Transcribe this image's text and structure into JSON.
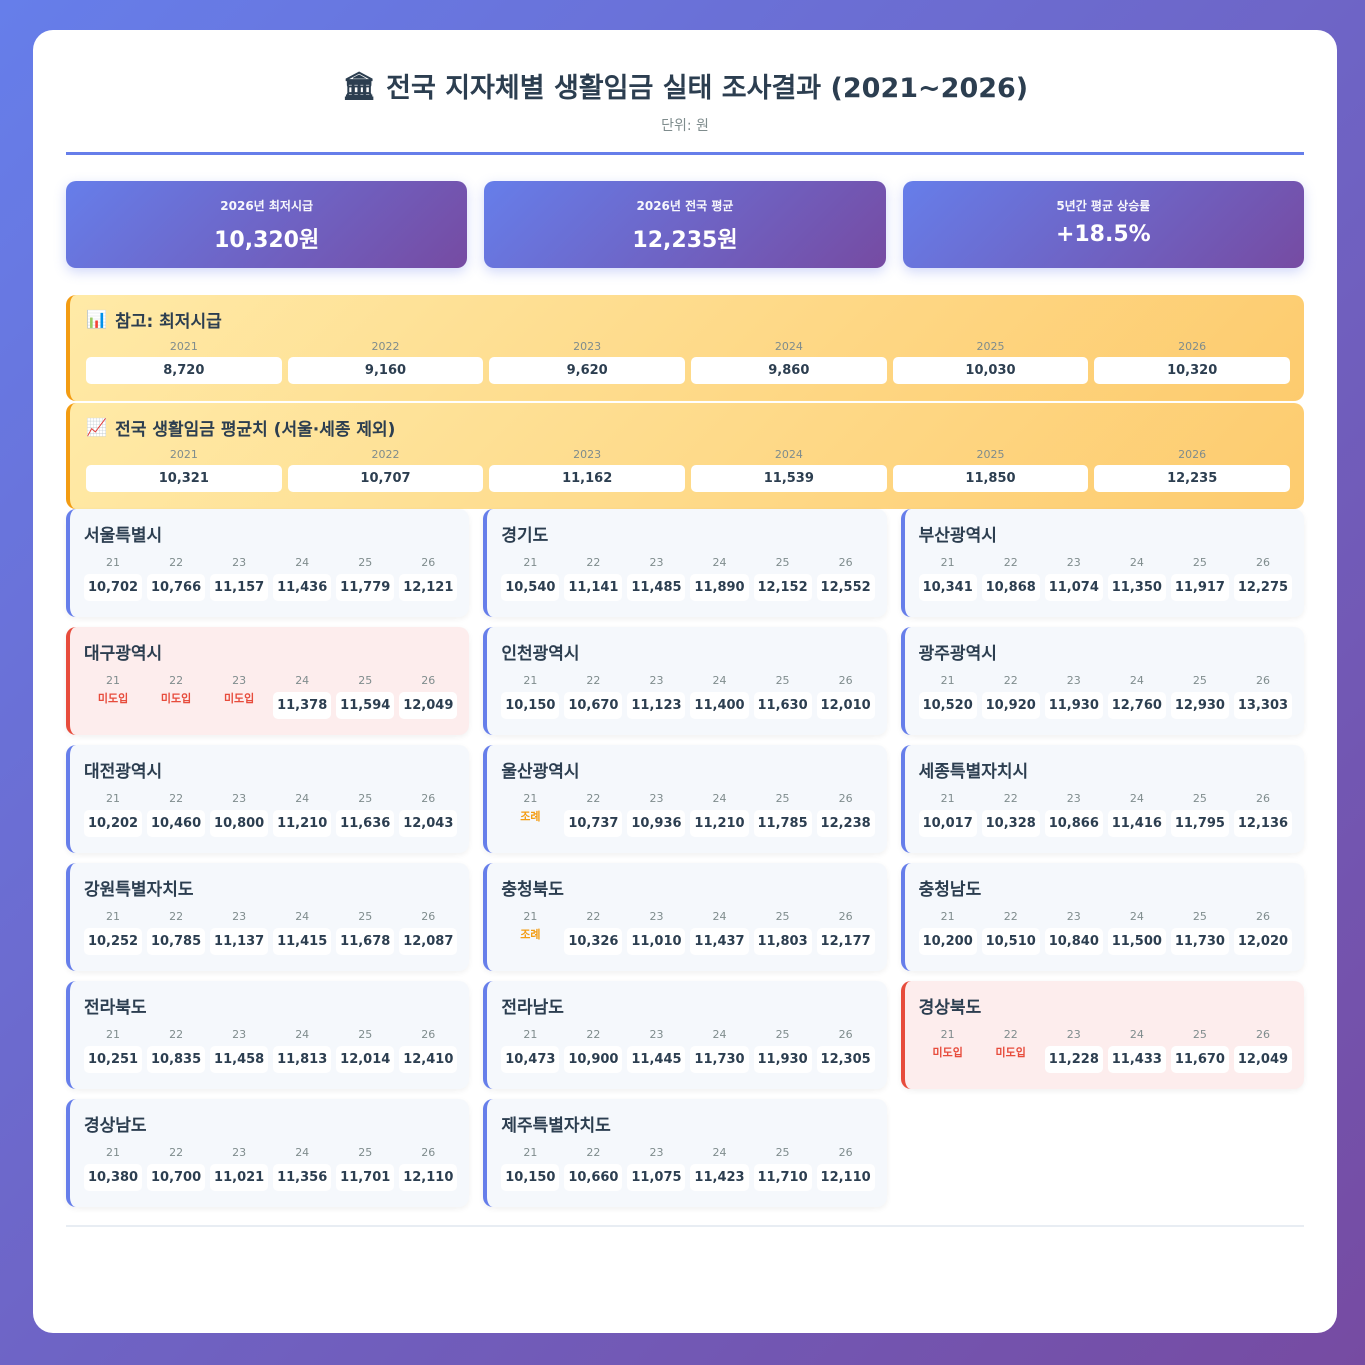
{
  "header": {
    "icon": "bank-icon",
    "title": "전국 지자체별 생활임금 실태 조사결과 (2021~2026)",
    "subtitle": "단위: 원"
  },
  "stats": [
    {
      "label": "2026년 최저시급",
      "value": "10,320원"
    },
    {
      "label": "2026년 전국 평균",
      "value": "12,235원"
    },
    {
      "label": "5년간 평균 상승률",
      "value": "+18.5%"
    }
  ],
  "reference": [
    {
      "icon": "bar-chart-icon",
      "title": "참고: 최저시급",
      "years": [
        "2021",
        "2022",
        "2023",
        "2024",
        "2025",
        "2026"
      ],
      "values": [
        "8,720",
        "9,160",
        "9,620",
        "9,860",
        "10,030",
        "10,320"
      ]
    },
    {
      "icon": "line-chart-icon",
      "title": "전국 생활임금 평균치 (서울·세종 제외)",
      "years": [
        "2021",
        "2022",
        "2023",
        "2024",
        "2025",
        "2026"
      ],
      "values": [
        "10,321",
        "10,707",
        "11,162",
        "11,539",
        "11,850",
        "12,235"
      ]
    }
  ],
  "region_years": [
    "21",
    "22",
    "23",
    "24",
    "25",
    "26"
  ],
  "colors": {
    "accent": "#667eea",
    "missing": "#e74c3c",
    "ordinance": "#f39c12"
  },
  "regions": [
    {
      "name": "서울특별시",
      "values": [
        "10,702",
        "10,766",
        "11,157",
        "11,436",
        "11,779",
        "12,121"
      ]
    },
    {
      "name": "경기도",
      "values": [
        "10,540",
        "11,141",
        "11,485",
        "11,890",
        "12,152",
        "12,552"
      ]
    },
    {
      "name": "부산광역시",
      "values": [
        "10,341",
        "10,868",
        "11,074",
        "11,350",
        "11,917",
        "12,275"
      ]
    },
    {
      "name": "대구광역시",
      "highlight": "red",
      "values": [
        "미도입",
        "미도입",
        "미도입",
        "11,378",
        "11,594",
        "12,049"
      ]
    },
    {
      "name": "인천광역시",
      "values": [
        "10,150",
        "10,670",
        "11,123",
        "11,400",
        "11,630",
        "12,010"
      ]
    },
    {
      "name": "광주광역시",
      "values": [
        "10,520",
        "10,920",
        "11,930",
        "12,760",
        "12,930",
        "13,303"
      ]
    },
    {
      "name": "대전광역시",
      "values": [
        "10,202",
        "10,460",
        "10,800",
        "11,210",
        "11,636",
        "12,043"
      ]
    },
    {
      "name": "울산광역시",
      "values": [
        "조례",
        "10,737",
        "10,936",
        "11,210",
        "11,785",
        "12,238"
      ]
    },
    {
      "name": "세종특별자치시",
      "values": [
        "10,017",
        "10,328",
        "10,866",
        "11,416",
        "11,795",
        "12,136"
      ]
    },
    {
      "name": "강원특별자치도",
      "values": [
        "10,252",
        "10,785",
        "11,137",
        "11,415",
        "11,678",
        "12,087"
      ]
    },
    {
      "name": "충청북도",
      "values": [
        "조례",
        "10,326",
        "11,010",
        "11,437",
        "11,803",
        "12,177"
      ]
    },
    {
      "name": "충청남도",
      "values": [
        "10,200",
        "10,510",
        "10,840",
        "11,500",
        "11,730",
        "12,020"
      ]
    },
    {
      "name": "전라북도",
      "values": [
        "10,251",
        "10,835",
        "11,458",
        "11,813",
        "12,014",
        "12,410"
      ]
    },
    {
      "name": "전라남도",
      "values": [
        "10,473",
        "10,900",
        "11,445",
        "11,730",
        "11,930",
        "12,305"
      ]
    },
    {
      "name": "경상북도",
      "highlight": "red",
      "values": [
        "미도입",
        "미도입",
        "11,228",
        "11,433",
        "11,670",
        "12,049"
      ]
    },
    {
      "name": "경상남도",
      "values": [
        "10,380",
        "10,700",
        "11,021",
        "11,356",
        "11,701",
        "12,110"
      ]
    },
    {
      "name": "제주특별자치도",
      "values": [
        "10,150",
        "10,660",
        "11,075",
        "11,423",
        "11,710",
        "12,110"
      ]
    }
  ]
}
